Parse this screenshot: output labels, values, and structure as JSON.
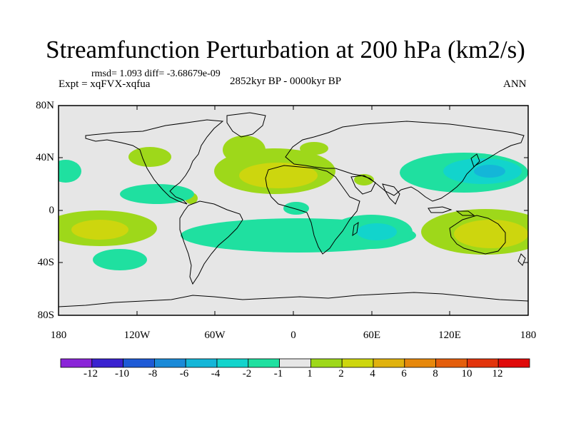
{
  "header": {
    "title": "Streamfunction Perturbation at 200 hPa (km2/s)",
    "stats": "rmsd= 1.093 diff= -3.68679e-09",
    "experiment": "Expt = xqFVX-xqfua",
    "period": "2852kyr BP - 0000kyr BP",
    "season": "ANN"
  },
  "axes": {
    "lat_labels": [
      "80N",
      "40N",
      "0",
      "40S",
      "80S"
    ],
    "lon_labels": [
      "180",
      "120W",
      "60W",
      "0",
      "60E",
      "120E",
      "180"
    ]
  },
  "colorbar": {
    "labels": [
      "-12",
      "-10",
      "-8",
      "-6",
      "-4",
      "-2",
      "-1",
      "1",
      "2",
      "4",
      "6",
      "8",
      "10",
      "12"
    ],
    "colors": [
      "#8a24d8",
      "#3a22d0",
      "#1e5ad6",
      "#1a8ad8",
      "#14b6d8",
      "#12d4cc",
      "#1fe0a0",
      "#e6e6e6",
      "#9ed81a",
      "#cdd60e",
      "#e0b20e",
      "#e6880c",
      "#e45e0c",
      "#e2340c",
      "#e00a0a"
    ]
  },
  "colors": {
    "background": "#e6e6e6",
    "neg_weak": "#1fe0a0",
    "neg_mid": "#12d4cc",
    "pos_weak": "#9ed81a",
    "pos_mid": "#cdd60e"
  }
}
